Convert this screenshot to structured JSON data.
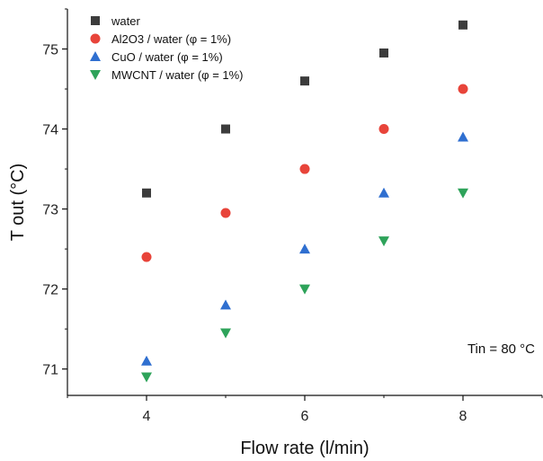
{
  "chart_data": {
    "type": "scatter",
    "xlabel": "Flow rate (l/min)",
    "ylabel": "T out (°C)",
    "xlim": [
      3.0,
      9.0
    ],
    "ylim": [
      70.67,
      75.5
    ],
    "xticks": [
      4,
      6,
      8
    ],
    "yticks": [
      71,
      72,
      73,
      74,
      75
    ],
    "grid": false,
    "legend_position": "top-left",
    "annotation": "Tin = 80 °C",
    "series": [
      {
        "name": "water",
        "marker": "square",
        "color": "#3c3c3c",
        "x": [
          4,
          5,
          6,
          7,
          8
        ],
        "y": [
          73.2,
          74.0,
          74.6,
          74.95,
          75.3
        ]
      },
      {
        "name": "Al2O3 / water (φ = 1%)",
        "marker": "circle",
        "color": "#e8443a",
        "x": [
          4,
          5,
          6,
          7,
          8
        ],
        "y": [
          72.4,
          72.95,
          73.5,
          74.0,
          74.5
        ]
      },
      {
        "name": "CuO / water (φ = 1%)",
        "marker": "triangle-up",
        "color": "#2f6fd0",
        "x": [
          4,
          5,
          6,
          7,
          8
        ],
        "y": [
          71.1,
          71.8,
          72.5,
          73.2,
          73.9
        ]
      },
      {
        "name": "MWCNT / water (φ = 1%)",
        "marker": "triangle-down",
        "color": "#2ea35a",
        "x": [
          4,
          5,
          6,
          7,
          8
        ],
        "y": [
          70.9,
          71.45,
          72.0,
          72.6,
          73.2
        ]
      }
    ]
  }
}
